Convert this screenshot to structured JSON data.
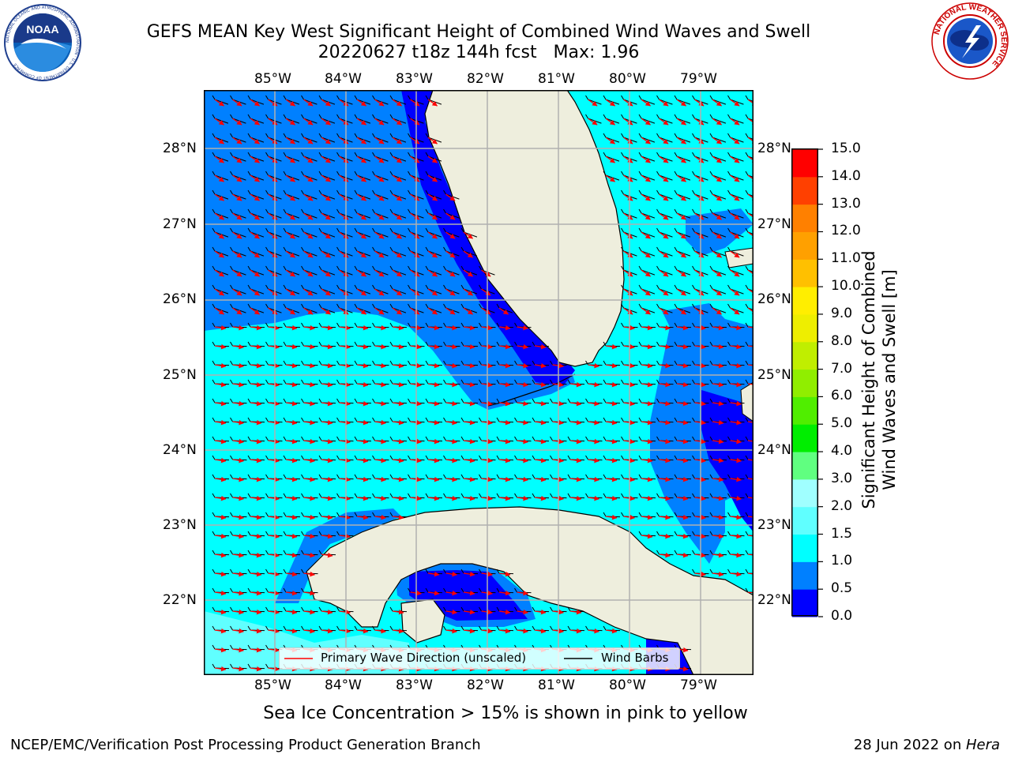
{
  "title": {
    "line1": "GEFS MEAN Key West Significant Height of Combined Wind Waves and Swell",
    "line2": "20220627 t18z 144h fcst   Max: 1.96"
  },
  "logos": {
    "noaa": {
      "text": "NOAA",
      "ring_text": "NATIONAL OCEANIC AND ATMOSPHERIC ADMINISTRATION · U.S. DEPARTMENT OF COMMERCE",
      "icon": "noaa-logo"
    },
    "nws": {
      "ring_text": "NATIONAL WEATHER SERVICE",
      "icon": "nws-logo"
    }
  },
  "map": {
    "lon_labels": [
      "85°W",
      "84°W",
      "83°W",
      "82°W",
      "81°W",
      "80°W",
      "79°W"
    ],
    "lat_labels": [
      "28°N",
      "27°N",
      "26°N",
      "25°N",
      "24°N",
      "23°N",
      "22°N"
    ],
    "extent": {
      "lon": [
        -86.0,
        -78.25
      ],
      "lat": [
        21.0,
        28.8
      ]
    },
    "colors": {
      "land": "#eeeedd",
      "coast": "#000000",
      "grid": "#b0b0b0",
      "wave_arrow": "#ff0000",
      "wind_barb": "#000000"
    },
    "regions": [
      "Florida",
      "Cuba",
      "Bahamas",
      "Gulf of Mexico",
      "Straits of Florida"
    ]
  },
  "legend": {
    "wave_label": "Primary Wave Direction (unscaled)",
    "wind_label": "Wind Barbs"
  },
  "colorbar": {
    "label_line1": "Significant Height of Combined",
    "label_line2": "Wind Waves and Swell [m]",
    "ticks": [
      "0.0",
      "0.5",
      "1.0",
      "1.5",
      "2.0",
      "3.0",
      "4.0",
      "5.0",
      "6.0",
      "7.0",
      "8.0",
      "9.0",
      "10.0",
      "11.0",
      "12.0",
      "13.0",
      "14.0",
      "15.0"
    ],
    "colors": [
      "#0000ff",
      "#0080ff",
      "#00ffff",
      "#60ffff",
      "#a0ffff",
      "#60ff80",
      "#00ee00",
      "#50ee00",
      "#90ee00",
      "#c0ee00",
      "#eeee00",
      "#ffee00",
      "#ffc000",
      "#ffa000",
      "#ff8000",
      "#ff4000",
      "#ff0000"
    ]
  },
  "sea_ice_note": "Sea Ice Concentration > 15% is shown in pink to yellow",
  "footer": {
    "left": "NCEP/EMC/Verification Post Processing Product Generation Branch",
    "right_date": "28 Jun 2022 on ",
    "right_host": "Hera"
  }
}
